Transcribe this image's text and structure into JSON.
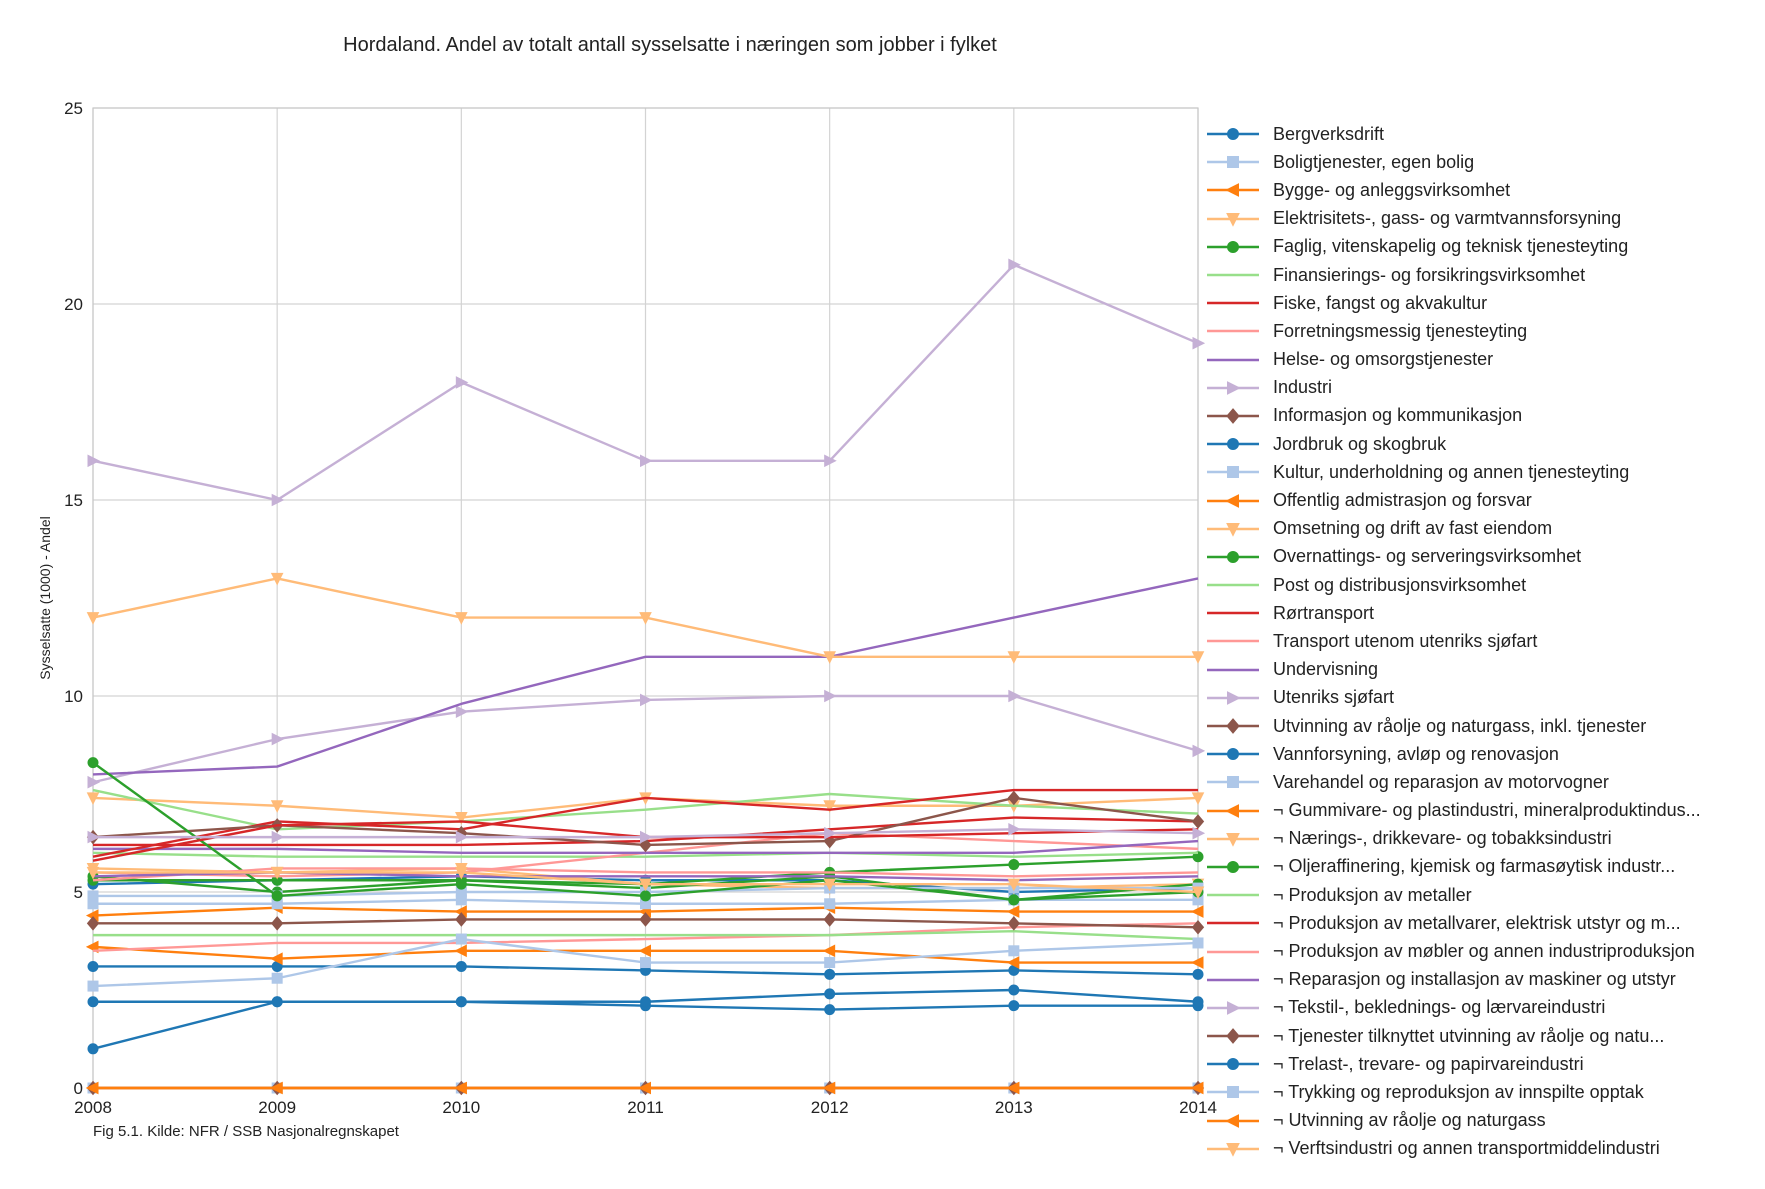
{
  "caption": "Fig 5.1. Kilde: NFR / SSB Nasjonalregnskapet",
  "chart_data": {
    "type": "line",
    "title": "Hordaland. Andel av totalt antall sysselsatte i næringen som jobber i fylket",
    "xlabel": "",
    "ylabel": "Sysselsatte (1000) - Andel",
    "x": [
      "2008",
      "2009",
      "2010",
      "2011",
      "2012",
      "2013",
      "2014"
    ],
    "xlim": [
      2008,
      2014
    ],
    "ylim": [
      0,
      25
    ],
    "yticks": [
      "0",
      "5",
      "10",
      "15",
      "20",
      "25"
    ],
    "grid": true,
    "legend_position": "right",
    "series": [
      {
        "name": "Bergverksdrift",
        "color": "#1f77b4",
        "marker": "circle",
        "values": [
          5.2,
          5.3,
          5.4,
          5.3,
          5.3,
          5.0,
          5.1
        ]
      },
      {
        "name": "Boligtjenester, egen bolig",
        "color": "#aec7e8",
        "marker": "square",
        "values": [
          0,
          0,
          0,
          0,
          0,
          0,
          0
        ]
      },
      {
        "name": "Bygge- og anleggsvirksomhet",
        "color": "#ff7f0e",
        "marker": "triangle-left",
        "values": [
          4.4,
          4.6,
          4.5,
          4.5,
          4.6,
          4.5,
          4.5
        ]
      },
      {
        "name": "Elektrisitets-, gass- og varmtvannsforsyning",
        "color": "#ffbb78",
        "marker": "triangle-down",
        "values": [
          5.6,
          5.5,
          5.6,
          5.2,
          5.1,
          5.1,
          5.2
        ]
      },
      {
        "name": "Faglig, vitenskapelig og teknisk tjenesteyting",
        "color": "#2ca02c",
        "marker": "circle",
        "values": [
          5.3,
          5.3,
          5.3,
          5.2,
          5.5,
          5.7,
          5.9
        ]
      },
      {
        "name": "Finansierings- og forsikringsvirksomhet",
        "color": "#98df8a",
        "marker": "none",
        "values": [
          6.0,
          5.9,
          5.9,
          5.9,
          6.0,
          5.9,
          6.0
        ]
      },
      {
        "name": "Fiske, fangst og akvakultur",
        "color": "#d62728",
        "marker": "none",
        "values": [
          6.2,
          6.2,
          6.2,
          6.3,
          6.6,
          6.9,
          6.8
        ]
      },
      {
        "name": "Forretningsmessig tjenesteyting",
        "color": "#ff9896",
        "marker": "none",
        "values": [
          5.5,
          5.4,
          5.5,
          6.0,
          6.5,
          6.3,
          6.1
        ]
      },
      {
        "name": "Helse- og omsorgstjenester",
        "color": "#9467bd",
        "marker": "none",
        "values": [
          6.1,
          6.1,
          6.0,
          6.0,
          6.0,
          6.0,
          6.3
        ]
      },
      {
        "name": "Industri",
        "color": "#c5b0d5",
        "marker": "triangle-right",
        "values": [
          7.8,
          8.9,
          9.6,
          9.9,
          10.0,
          10.0,
          8.6
        ]
      },
      {
        "name": "Informasjon og kommunikasjon",
        "color": "#8c564b",
        "marker": "diamond",
        "values": [
          0,
          0,
          0,
          0,
          0,
          0,
          0
        ]
      },
      {
        "name": "Jordbruk og skogbruk",
        "color": "#1f77b4",
        "marker": "circle",
        "values": [
          3.1,
          3.1,
          3.1,
          3.0,
          2.9,
          3.0,
          2.9
        ]
      },
      {
        "name": "Kultur, underholdning og annen tjenesteyting",
        "color": "#aec7e8",
        "marker": "square",
        "values": [
          4.7,
          4.7,
          4.8,
          4.7,
          4.7,
          4.8,
          4.8
        ]
      },
      {
        "name": "Offentlig admistrasjon og forsvar",
        "color": "#ff7f0e",
        "marker": "triangle-left",
        "values": [
          3.6,
          3.3,
          3.5,
          3.5,
          3.5,
          3.2,
          3.2
        ]
      },
      {
        "name": "Omsetning og drift av fast eiendom",
        "color": "#ffbb78",
        "marker": "triangle-down",
        "values": [
          7.4,
          7.2,
          6.9,
          7.4,
          7.2,
          7.2,
          7.4
        ]
      },
      {
        "name": "Overnattings- og serveringsvirksomhet",
        "color": "#2ca02c",
        "marker": "circle",
        "values": [
          5.4,
          5.0,
          5.3,
          5.1,
          5.4,
          4.8,
          5.2
        ]
      },
      {
        "name": "Post og distribusjonsvirksomhet",
        "color": "#98df8a",
        "marker": "none",
        "values": [
          7.6,
          6.6,
          6.8,
          7.1,
          7.5,
          7.2,
          7.0
        ]
      },
      {
        "name": "Rørtransport",
        "color": "#d62728",
        "marker": "none",
        "values": [
          5.9,
          6.8,
          6.6,
          7.4,
          7.1,
          7.6,
          7.6
        ]
      },
      {
        "name": "Transport utenom utenriks sjøfart",
        "color": "#ff9896",
        "marker": "none",
        "values": [
          3.5,
          3.7,
          3.7,
          3.8,
          3.9,
          4.1,
          4.2
        ]
      },
      {
        "name": "Undervisning",
        "color": "#9467bd",
        "marker": "none",
        "values": [
          8.0,
          8.2,
          9.8,
          11.0,
          11.0,
          12.0,
          13.0
        ]
      },
      {
        "name": "Utenriks sjøfart",
        "color": "#c5b0d5",
        "marker": "triangle-right",
        "values": [
          16.0,
          15.0,
          18.0,
          16.0,
          16.0,
          21.0,
          19.0
        ]
      },
      {
        "name": "Utvinning av råolje og naturgass, inkl. tjenester",
        "color": "#8c564b",
        "marker": "diamond",
        "values": [
          6.4,
          6.7,
          6.5,
          6.2,
          6.3,
          7.4,
          6.8
        ]
      },
      {
        "name": "Vannforsyning, avløp og renovasjon",
        "color": "#1f77b4",
        "marker": "circle",
        "values": [
          1.0,
          2.2,
          2.2,
          2.1,
          2.0,
          2.1,
          2.1
        ]
      },
      {
        "name": "Varehandel og reparasjon av motorvogner",
        "color": "#aec7e8",
        "marker": "square",
        "values": [
          4.9,
          4.9,
          5.0,
          5.0,
          5.1,
          5.1,
          5.1
        ]
      },
      {
        "name": "¬ Gummivare- og plastindustri, mineralproduktindus...",
        "color": "#ff7f0e",
        "marker": "triangle-left",
        "values": [
          0,
          0,
          0,
          0,
          0,
          0,
          0
        ]
      },
      {
        "name": "¬ Nærings-, drikkevare- og tobakksindustri",
        "color": "#ffbb78",
        "marker": "triangle-down",
        "values": [
          12.0,
          13.0,
          12.0,
          12.0,
          11.0,
          11.0,
          11.0
        ]
      },
      {
        "name": "¬ Oljeraffinering, kjemisk og farmasøytisk industr...",
        "color": "#2ca02c",
        "marker": "circle",
        "values": [
          8.3,
          4.9,
          5.2,
          4.9,
          5.3,
          4.8,
          5.0
        ]
      },
      {
        "name": "¬ Produksjon av metaller",
        "color": "#98df8a",
        "marker": "none",
        "values": [
          3.9,
          3.9,
          3.9,
          3.9,
          3.9,
          4.0,
          3.8
        ]
      },
      {
        "name": "¬ Produksjon av metallvarer, elektrisk utstyr og m...",
        "color": "#d62728",
        "marker": "none",
        "values": [
          5.8,
          6.7,
          6.8,
          6.4,
          6.4,
          6.5,
          6.6
        ]
      },
      {
        "name": "¬ Produksjon av møbler og annen industriproduksjon",
        "color": "#ff9896",
        "marker": "none",
        "values": [
          5.3,
          5.6,
          5.6,
          5.5,
          5.5,
          5.4,
          5.5
        ]
      },
      {
        "name": "¬ Reparasjon og installasjon av maskiner og utstyr",
        "color": "#9467bd",
        "marker": "none",
        "values": [
          5.4,
          5.5,
          5.4,
          5.4,
          5.4,
          5.3,
          5.4
        ]
      },
      {
        "name": "¬ Tekstil-, beklednings- og lærvareindustri",
        "color": "#c5b0d5",
        "marker": "triangle-right",
        "values": [
          6.4,
          6.4,
          6.4,
          6.4,
          6.5,
          6.6,
          6.5
        ]
      },
      {
        "name": "¬ Tjenester tilknyttet utvinning av råolje og natu...",
        "color": "#8c564b",
        "marker": "diamond",
        "values": [
          4.2,
          4.2,
          4.3,
          4.3,
          4.3,
          4.2,
          4.1
        ]
      },
      {
        "name": "¬ Trelast-, trevare- og papirvareindustri",
        "color": "#1f77b4",
        "marker": "circle",
        "values": [
          2.2,
          2.2,
          2.2,
          2.2,
          2.4,
          2.5,
          2.2
        ]
      },
      {
        "name": "¬ Trykking og reproduksjon av innspilte opptak",
        "color": "#aec7e8",
        "marker": "square",
        "values": [
          2.6,
          2.8,
          3.8,
          3.2,
          3.2,
          3.5,
          3.7
        ]
      },
      {
        "name": "¬ Utvinning av råolje og naturgass",
        "color": "#ff7f0e",
        "marker": "triangle-left",
        "values": [
          0,
          0,
          0,
          0,
          0,
          0,
          0
        ]
      },
      {
        "name": "¬ Verftsindustri og annen transportmiddelindustri",
        "color": "#ffbb78",
        "marker": "triangle-down",
        "values": [
          5.5,
          5.5,
          5.5,
          5.2,
          5.2,
          5.2,
          5.0
        ]
      }
    ]
  }
}
